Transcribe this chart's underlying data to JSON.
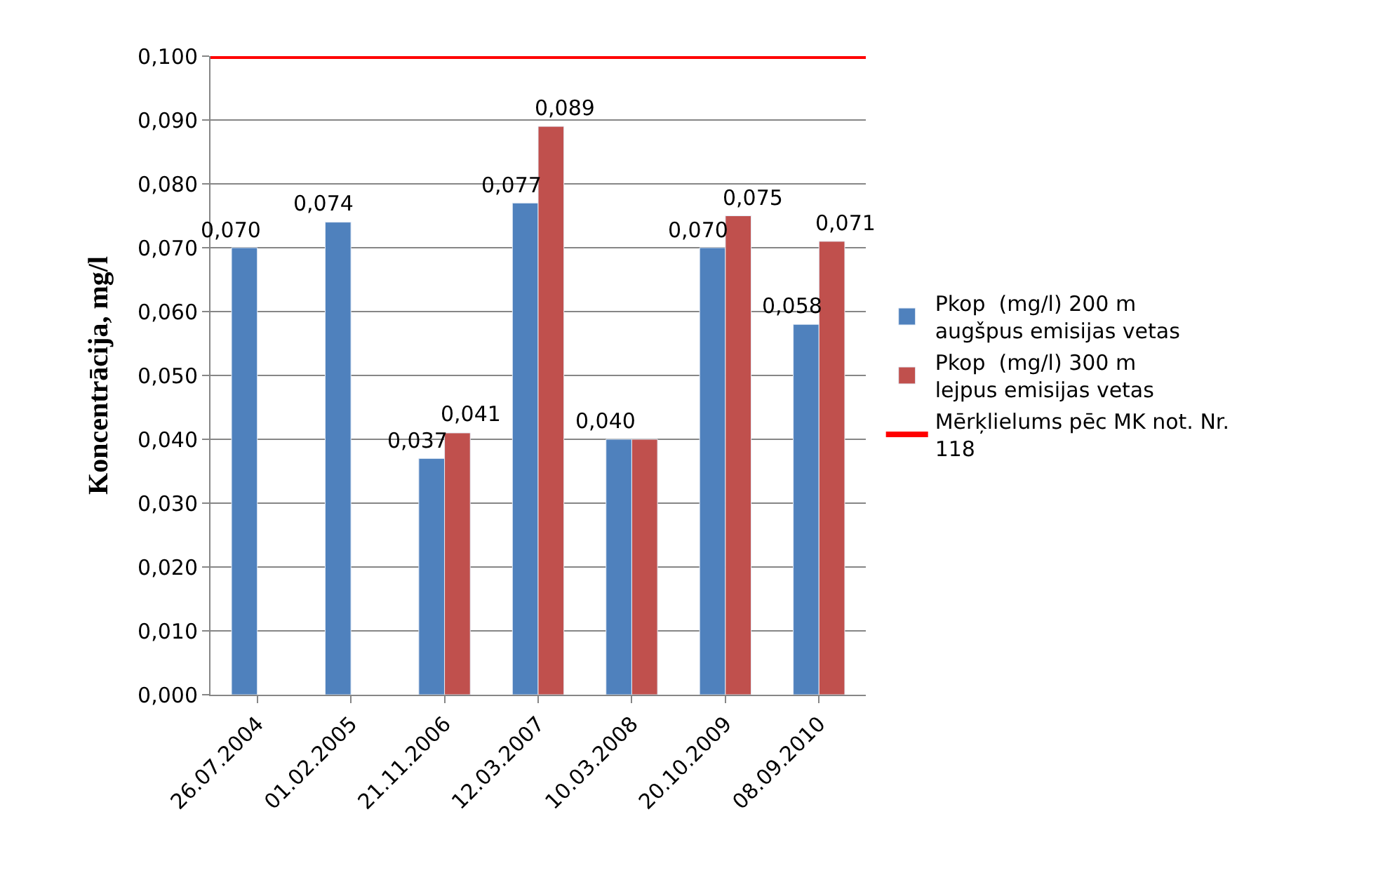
{
  "chart_data": {
    "type": "bar",
    "ylabel": "Koncentrācija, mg/l",
    "categories": [
      "26.07.2004",
      "01.02.2005",
      "21.11.2006",
      "12.03.2007",
      "10.03.2008",
      "20.10.2009",
      "08.09.2010"
    ],
    "series": [
      {
        "name": "Pkop  (mg/l) 200 m augšpus emisijas vetas",
        "color": "#4f81bd",
        "values": [
          0.07,
          0.074,
          0.037,
          0.077,
          0.04,
          0.07,
          0.058
        ],
        "value_labels": [
          "0,070",
          "0,074",
          "0,037",
          "0,077",
          "0,040",
          "0,070",
          "0,058"
        ]
      },
      {
        "name": "Pkop  (mg/l) 300 m lejpus emisijas vetas",
        "color": "#c0504d",
        "values": [
          null,
          null,
          0.041,
          0.089,
          0.04,
          0.075,
          0.071
        ],
        "value_labels": [
          null,
          null,
          "0,041",
          "0,089",
          null,
          "0,075",
          "0,071"
        ]
      }
    ],
    "ref_lines": [
      {
        "axis": "y",
        "value": 0.1,
        "label": "Mērķlielums pēc MK not. Nr. 118",
        "color": "#ff0000",
        "line_style": "solid"
      }
    ],
    "ylim": [
      0,
      0.1
    ],
    "yticks": [
      {
        "value": 0,
        "label": "0,000"
      },
      {
        "value": 0.01,
        "label": "0,010"
      },
      {
        "value": 0.02,
        "label": "0,020"
      },
      {
        "value": 0.03,
        "label": "0,030"
      },
      {
        "value": 0.04,
        "label": "0,040"
      },
      {
        "value": 0.05,
        "label": "0,050"
      },
      {
        "value": 0.06,
        "label": "0,060"
      },
      {
        "value": 0.07,
        "label": "0,070"
      },
      {
        "value": 0.08,
        "label": "0,080"
      },
      {
        "value": 0.09,
        "label": "0,090"
      },
      {
        "value": 0.1,
        "label": "0,100"
      }
    ],
    "grid": "y",
    "legend": "right"
  }
}
